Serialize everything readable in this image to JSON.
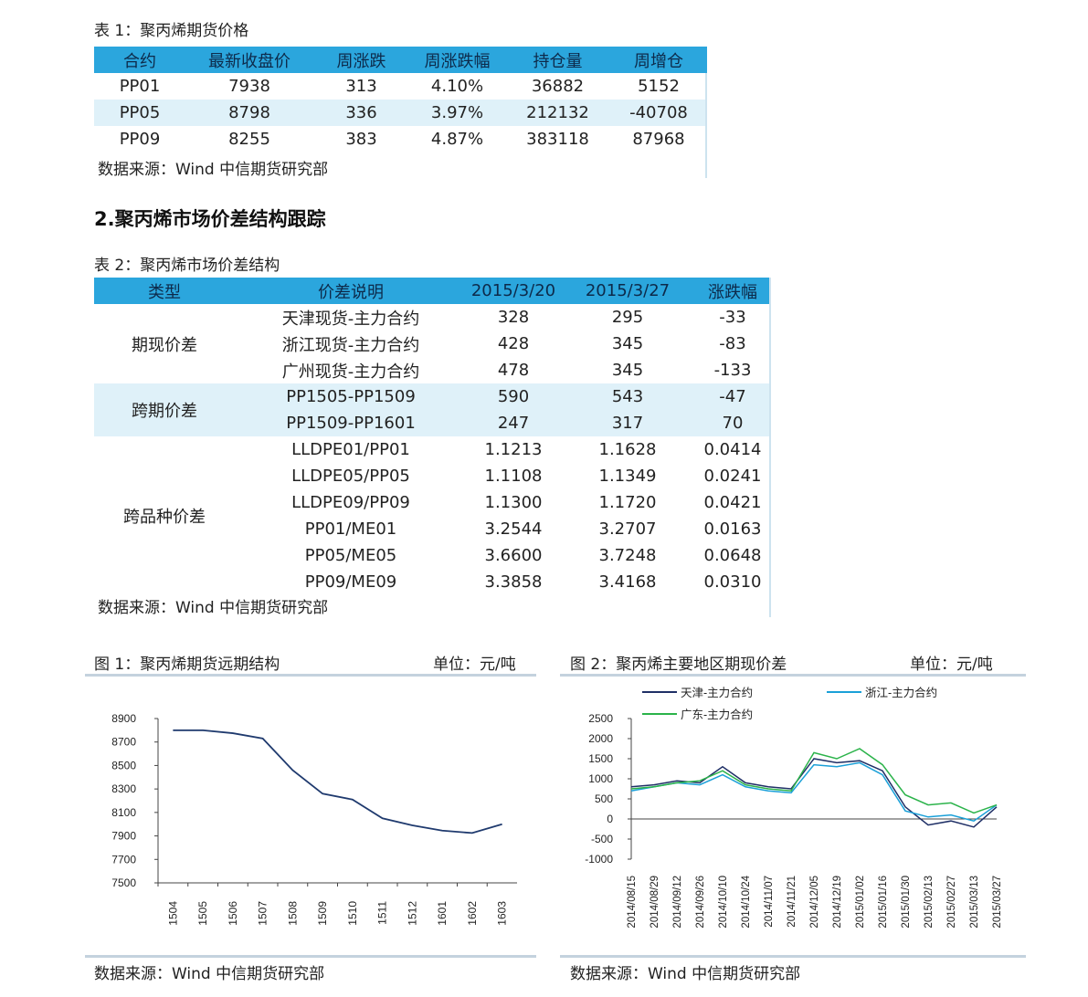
{
  "table1": {
    "caption": "表 1：聚丙烯期货价格",
    "headers": [
      "合约",
      "最新收盘价",
      "周涨跌",
      "周涨跌幅",
      "持仓量",
      "周增仓"
    ],
    "rows": [
      [
        "PP01",
        "7938",
        "313",
        "4.10%",
        "36882",
        "5152"
      ],
      [
        "PP05",
        "8798",
        "336",
        "3.97%",
        "212132",
        "-40708"
      ],
      [
        "PP09",
        "8255",
        "383",
        "4.87%",
        "383118",
        "87968"
      ]
    ],
    "source": "数据来源：Wind  中信期货研究部"
  },
  "section_heading": "2.聚丙烯市场价差结构跟踪",
  "table2": {
    "caption": "表 2：聚丙烯市场价差结构",
    "headers": [
      "类型",
      "价差说明",
      "2015/3/20",
      "2015/3/27",
      "涨跌幅"
    ],
    "groups": [
      {
        "type": "期现价差",
        "rows": [
          [
            "天津现货-主力合约",
            "328",
            "295",
            "-33"
          ],
          [
            "浙江现货-主力合约",
            "428",
            "345",
            "-83"
          ],
          [
            "广州现货-主力合约",
            "478",
            "345",
            "-133"
          ]
        ]
      },
      {
        "type": "跨期价差",
        "rows": [
          [
            "PP1505-PP1509",
            "590",
            "543",
            "-47"
          ],
          [
            "PP1509-PP1601",
            "247",
            "317",
            "70"
          ]
        ]
      },
      {
        "type": "跨品种价差",
        "rows": [
          [
            "LLDPE01/PP01",
            "1.1213",
            "1.1628",
            "0.0414"
          ],
          [
            "LLDPE05/PP05",
            "1.1108",
            "1.1349",
            "0.0241"
          ],
          [
            "LLDPE09/PP09",
            "1.1300",
            "1.1720",
            "0.0421"
          ],
          [
            "PP01/ME01",
            "3.2544",
            "3.2707",
            "0.0163"
          ],
          [
            "PP05/ME05",
            "3.6600",
            "3.7248",
            "0.0648"
          ],
          [
            "PP09/ME09",
            "3.3858",
            "3.4168",
            "0.0310"
          ]
        ]
      }
    ],
    "source": "数据来源：Wind  中信期货研究部"
  },
  "figure1": {
    "caption": "图 1：聚丙烯期货远期结构",
    "unit": "单位：元/吨",
    "source": "数据来源：Wind  中信期货研究部"
  },
  "figure2": {
    "caption": "图 2：聚丙烯主要地区期现价差",
    "unit": "单位：元/吨",
    "source": "数据来源：Wind  中信期货研究部"
  },
  "chart_data": [
    {
      "type": "line",
      "categories": [
        "1504",
        "1505",
        "1506",
        "1507",
        "1508",
        "1509",
        "1510",
        "1511",
        "1512",
        "1601",
        "1602",
        "1603"
      ],
      "values": [
        8800,
        8800,
        8775,
        8730,
        8460,
        8260,
        8210,
        8050,
        7990,
        7945,
        7925,
        8000
      ],
      "ylim": [
        7500,
        8900
      ],
      "yticks": [
        "8900",
        "8700",
        "8500",
        "8300",
        "8100",
        "7900",
        "7700",
        "7500"
      ],
      "color": "#1f3a6e",
      "grid": false
    },
    {
      "type": "line",
      "x": [
        "2014/08/15",
        "2014/08/29",
        "2014/09/12",
        "2014/09/26",
        "2014/10/10",
        "2014/10/24",
        "2014/11/07",
        "2014/11/21",
        "2014/12/05",
        "2014/12/19",
        "2015/01/02",
        "2015/01/16",
        "2015/01/30",
        "2015/02/13",
        "2015/02/27",
        "2015/03/13",
        "2015/03/27"
      ],
      "ylim": [
        -1000,
        2500
      ],
      "yticks": [
        "2500",
        "2000",
        "1500",
        "1000",
        "500",
        "0",
        "-500",
        "-1000"
      ],
      "legend": [
        "天津-主力合约",
        "浙江-主力合约",
        "广东-主力合约"
      ],
      "series": [
        {
          "name": "天津-主力合约",
          "color": "#1f2f66",
          "values": [
            800,
            850,
            950,
            900,
            1300,
            900,
            800,
            750,
            1500,
            1400,
            1450,
            1200,
            300,
            -150,
            -50,
            -200,
            300
          ]
        },
        {
          "name": "浙江-主力合约",
          "color": "#1aa0d8",
          "values": [
            700,
            800,
            900,
            850,
            1100,
            800,
            700,
            650,
            1350,
            1300,
            1400,
            1100,
            200,
            50,
            100,
            -50,
            350
          ]
        },
        {
          "name": "广东-主力合约",
          "color": "#2bb34a",
          "values": [
            750,
            800,
            900,
            950,
            1200,
            850,
            750,
            700,
            1650,
            1500,
            1750,
            1350,
            600,
            350,
            400,
            150,
            350
          ]
        }
      ],
      "grid": false
    }
  ]
}
